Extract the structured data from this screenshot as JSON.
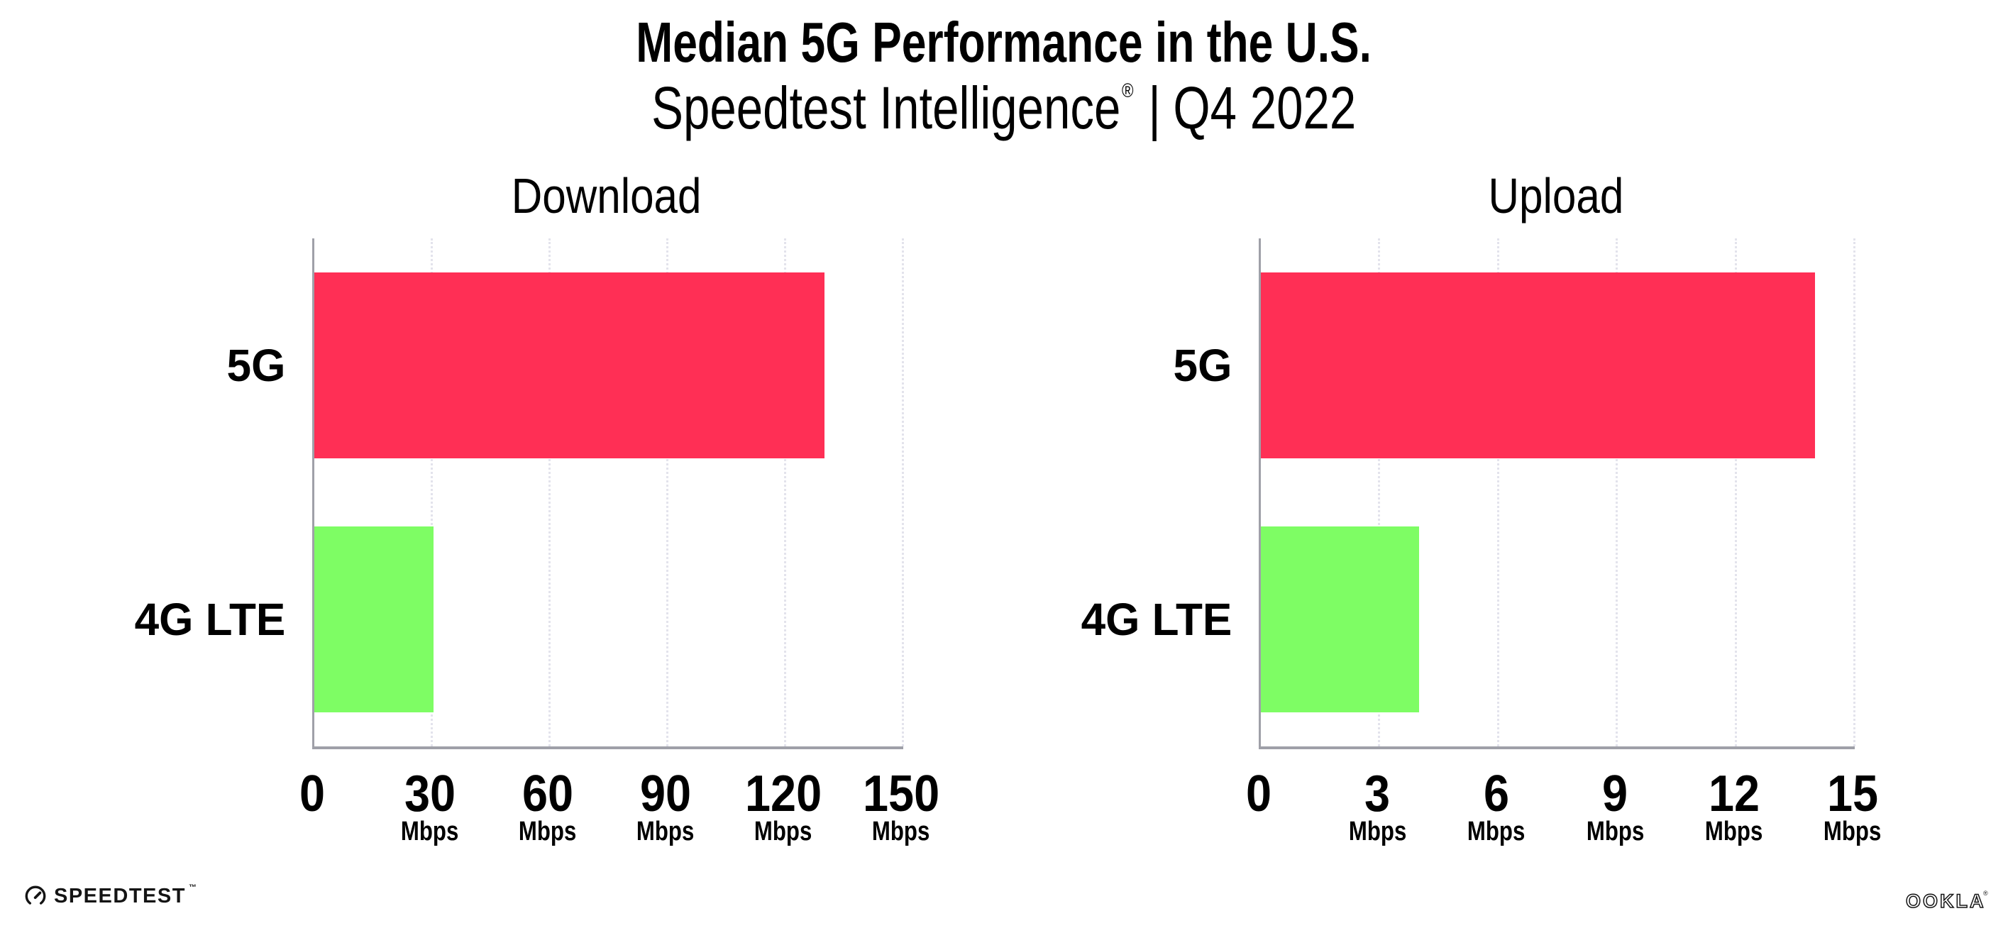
{
  "header": {
    "title": "Median 5G Performance in the U.S.",
    "subtitle": {
      "brand": "Speedtest Intelligence",
      "registered": "®",
      "separator": "|",
      "period": "Q4 2022"
    }
  },
  "chart_data": [
    {
      "type": "bar",
      "orientation": "horizontal",
      "title": "Download",
      "categories": [
        "5G",
        "4G LTE"
      ],
      "values": [
        130,
        30.4
      ],
      "unit": "Mbps",
      "xlabel": "",
      "ylabel": "",
      "xlim": [
        0,
        150
      ],
      "xticks": [
        0,
        30,
        60,
        90,
        120,
        150
      ],
      "grid": "vertical-dotted",
      "legend": "none",
      "bar_colors": [
        "#FF2F55",
        "#7EFD64"
      ]
    },
    {
      "type": "bar",
      "orientation": "horizontal",
      "title": "Upload",
      "categories": [
        "5G",
        "4G LTE"
      ],
      "values": [
        14,
        4
      ],
      "unit": "Mbps",
      "xlabel": "",
      "ylabel": "",
      "xlim": [
        0,
        15
      ],
      "xticks": [
        0,
        3,
        6,
        9,
        12,
        15
      ],
      "grid": "vertical-dotted",
      "legend": "none",
      "bar_colors": [
        "#FF2F55",
        "#7EFD64"
      ]
    }
  ],
  "footer": {
    "speedtest": {
      "label": "SPEEDTEST",
      "trademark": "™"
    },
    "ookla": {
      "label": "OOKLA",
      "registered": "®"
    }
  },
  "colors": {
    "bar_5g": "#FF2F55",
    "bar_4g_lte": "#7EFD64",
    "axis": "#9FA0A8",
    "gridline": "#E3E3EC",
    "background": "#FFFFFF",
    "text": "#000000",
    "logo_ink": "#141414"
  }
}
